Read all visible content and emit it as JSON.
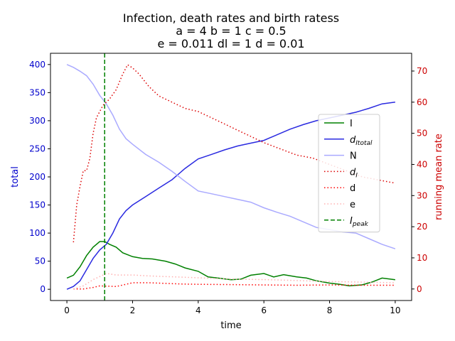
{
  "chart_data": {
    "type": "line",
    "title_lines": [
      "Infection, death rates and birth ratess",
      "a = 4   b = 1   c = 0.5",
      "e = 0.011   dl = 1   d = 0.01"
    ],
    "xlabel": "time",
    "ylabel_left": "total",
    "ylabel_right": "running mean rate",
    "xlim": [
      -0.5,
      10.5
    ],
    "ylim_left": [
      -20,
      420
    ],
    "ylim_right": [
      -3.7,
      75.7
    ],
    "x_ticks": [
      0,
      2,
      4,
      6,
      8,
      10
    ],
    "y_ticks_left": [
      0,
      50,
      100,
      150,
      200,
      250,
      300,
      350,
      400
    ],
    "y_ticks_right": [
      0,
      10,
      20,
      30,
      40,
      50,
      60,
      70
    ],
    "grid": false,
    "legend_position": "center-right",
    "peak_time": 1.15,
    "series": [
      {
        "name": "I",
        "color": "#008000",
        "style": "solid",
        "axis": "left",
        "x": [
          0,
          0.2,
          0.4,
          0.6,
          0.8,
          1.0,
          1.15,
          1.3,
          1.5,
          1.7,
          2.0,
          2.3,
          2.6,
          3.0,
          3.3,
          3.6,
          4.0,
          4.3,
          4.6,
          5.0,
          5.3,
          5.6,
          6.0,
          6.3,
          6.6,
          7.0,
          7.3,
          7.6,
          8.0,
          8.3,
          8.6,
          9.0,
          9.3,
          9.6,
          10.0
        ],
        "y": [
          20,
          25,
          40,
          60,
          75,
          85,
          85,
          80,
          75,
          65,
          58,
          55,
          54,
          50,
          45,
          38,
          32,
          22,
          20,
          17,
          18,
          25,
          28,
          22,
          26,
          22,
          20,
          15,
          11,
          9,
          6,
          8,
          13,
          20,
          17
        ]
      },
      {
        "name": "d_Itotal",
        "label_main": "d",
        "label_sub": "Itotal",
        "color": "#2a2ae0",
        "style": "solid",
        "axis": "left",
        "x": [
          0,
          0.2,
          0.4,
          0.6,
          0.8,
          1.0,
          1.2,
          1.4,
          1.6,
          1.8,
          2.0,
          2.4,
          2.8,
          3.2,
          3.6,
          4.0,
          4.4,
          4.8,
          5.2,
          5.6,
          6.0,
          6.4,
          6.8,
          7.2,
          7.6,
          8.0,
          8.4,
          8.8,
          9.2,
          9.6,
          10.0
        ],
        "y": [
          0,
          5,
          15,
          35,
          55,
          70,
          80,
          100,
          125,
          140,
          150,
          165,
          180,
          195,
          215,
          232,
          240,
          248,
          255,
          260,
          265,
          275,
          285,
          293,
          300,
          305,
          310,
          315,
          322,
          330,
          333
        ]
      },
      {
        "name": "N",
        "color": "#aaaaff",
        "style": "solid",
        "axis": "left",
        "x": [
          0,
          0.2,
          0.4,
          0.6,
          0.8,
          1.0,
          1.2,
          1.4,
          1.6,
          1.8,
          2.0,
          2.4,
          2.8,
          3.2,
          3.6,
          4.0,
          4.4,
          4.8,
          5.2,
          5.6,
          6.0,
          6.4,
          6.8,
          7.2,
          7.6,
          8.0,
          8.4,
          8.8,
          9.2,
          9.6,
          10.0
        ],
        "y": [
          400,
          395,
          388,
          380,
          365,
          345,
          330,
          310,
          285,
          268,
          258,
          240,
          226,
          210,
          192,
          175,
          170,
          165,
          160,
          155,
          145,
          137,
          130,
          120,
          110,
          106,
          102,
          100,
          90,
          80,
          72
        ]
      },
      {
        "name": "d_I",
        "label_main": "d",
        "label_sub": "I",
        "color": "#dd0000",
        "style": "dotted",
        "axis": "right",
        "x": [
          0.2,
          0.3,
          0.4,
          0.5,
          0.6,
          0.7,
          0.8,
          0.9,
          1.0,
          1.1,
          1.3,
          1.5,
          1.7,
          1.85,
          2.0,
          2.2,
          2.5,
          2.8,
          3.2,
          3.6,
          4.0,
          4.4,
          4.8,
          5.2,
          5.6,
          6.0,
          6.5,
          7.0,
          7.5,
          8.0,
          8.5,
          9.0,
          9.5,
          10.0
        ],
        "y": [
          15,
          27,
          33,
          38,
          38,
          42,
          50,
          55,
          57,
          59,
          61,
          64,
          69,
          72,
          71,
          69,
          65,
          62,
          60,
          58,
          57,
          55,
          53,
          51,
          49,
          47,
          45,
          43,
          42,
          40,
          38,
          36,
          35,
          34
        ]
      },
      {
        "name": "d",
        "color": "#ff0000",
        "style": "dotted",
        "axis": "right",
        "x": [
          0.2,
          0.5,
          0.8,
          1.0,
          1.5,
          1.8,
          2.0,
          2.5,
          3.0,
          3.5,
          4.0,
          5.0,
          6.0,
          7.0,
          8.0,
          9.0,
          10.0
        ],
        "y": [
          0,
          0,
          0.5,
          1,
          0.8,
          1.5,
          2,
          2,
          1.8,
          1.6,
          1.5,
          1.4,
          1.3,
          1.2,
          1.3,
          1.2,
          1.2
        ]
      },
      {
        "name": "e",
        "color": "#ffb0b0",
        "style": "dotted",
        "axis": "right",
        "x": [
          0.2,
          0.5,
          0.8,
          1.0,
          1.2,
          1.5,
          2.0,
          2.5,
          3.0,
          3.5,
          4.0,
          5.0,
          6.0,
          7.0,
          8.0,
          9.0,
          10.0
        ],
        "y": [
          0,
          1,
          3,
          4,
          5,
          4.5,
          4.5,
          4.2,
          4,
          3.8,
          3.6,
          3.2,
          3,
          2.7,
          2.4,
          2.2,
          2
        ]
      }
    ],
    "peak_line": {
      "name": "I_peak",
      "label_main": "I",
      "label_sub": "peak",
      "color": "#008000",
      "style": "dashed"
    }
  }
}
